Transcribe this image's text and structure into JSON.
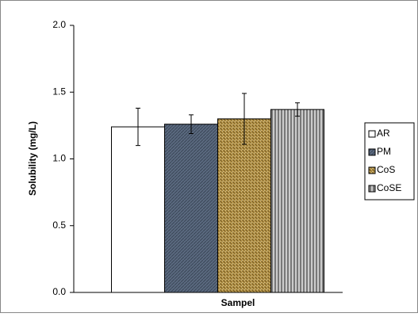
{
  "chart_data": {
    "type": "bar",
    "y_label": "Solubility (mg/L)",
    "x_label": "Sampel",
    "categories": [
      null
    ],
    "series": [
      {
        "name": "AR",
        "color": "#ffffff",
        "values": [
          1.24
        ],
        "errors": [
          0.14
        ]
      },
      {
        "name": "PM",
        "color": "#5b6a80",
        "values": [
          1.26
        ],
        "errors": [
          0.07
        ]
      },
      {
        "name": "CoS",
        "color": "#b8964a",
        "values": [
          1.3
        ],
        "errors": [
          0.19
        ]
      },
      {
        "name": "CoSE",
        "color": "#9a9a9a",
        "values": [
          1.37
        ],
        "errors": [
          0.05
        ]
      }
    ],
    "ylim": [
      0,
      2
    ],
    "yticks": [
      {
        "value": 0,
        "label": "0.0"
      },
      {
        "value": 0.5,
        "label": "0.5"
      },
      {
        "value": 1,
        "label": "1.0"
      },
      {
        "value": 1.5,
        "label": "1.5"
      },
      {
        "value": 2,
        "label": "2.0"
      }
    ],
    "grid": false,
    "legend": "right"
  }
}
